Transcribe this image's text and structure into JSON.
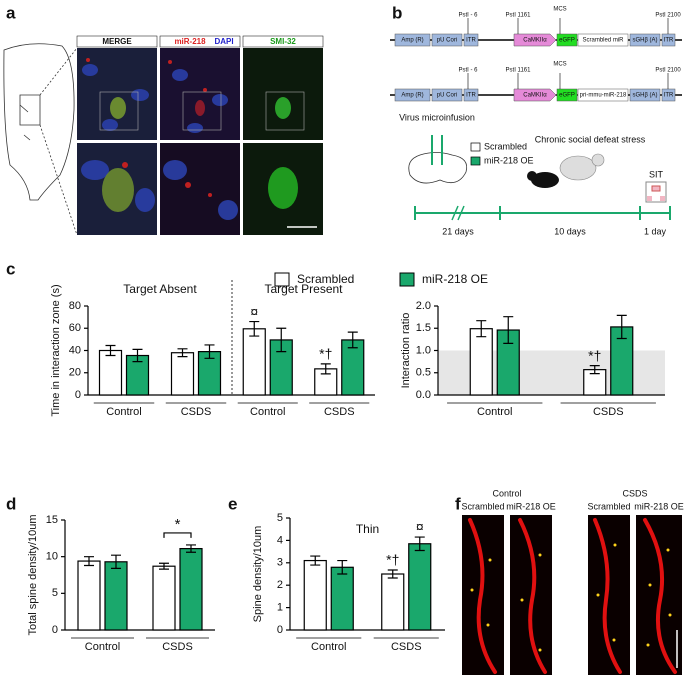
{
  "panel_labels": [
    "a",
    "b",
    "c",
    "d",
    "e",
    "f"
  ],
  "panel_a": {
    "merge": "MERGE",
    "mir": "miR-218",
    "dapi": "DAPI",
    "smi": "SMI-32"
  },
  "panel_b": {
    "constructs": [
      {
        "elements": [
          "Amp (R)",
          "pU Cori",
          "ITR",
          "CaMKIIα",
          "eGFP",
          "Scrambled miR",
          "sGHβ (A)",
          "ITR"
        ]
      },
      {
        "elements": [
          "Amp (R)",
          "pU Cori",
          "ITR",
          "CaMKIIα",
          "eGFP",
          "pri-mmu-miR-218",
          "sGHβ (A)",
          "ITR"
        ]
      }
    ],
    "sites": [
      "PstI - 6",
      "PstI 1161",
      "MCS",
      "PstI 2100"
    ],
    "timeline": {
      "steps": [
        "Virus microinfusion",
        "Chronic social defeat stress",
        "SIT"
      ],
      "legend": [
        "Scrambled",
        "miR-218 OE"
      ],
      "durations": [
        "21 days",
        "10 days",
        "1 day"
      ]
    }
  },
  "panel_f": {
    "groups": [
      "Control",
      "CSDS"
    ],
    "conditions": [
      "Scrambled",
      "miR-218 OE"
    ]
  },
  "chart_data": [
    {
      "type": "bar",
      "title": "Target Absent",
      "ylabel": "Time in interaction zone (s)",
      "categories": [
        "Control",
        "CSDS"
      ],
      "ylim": [
        0,
        80
      ],
      "yticks": [
        0,
        20,
        40,
        60,
        80
      ],
      "series": [
        {
          "name": "Scrambled",
          "color": "#ffffff",
          "values": [
            40,
            38
          ],
          "errors": [
            4.5,
            3.5
          ]
        },
        {
          "name": "miR-218 OE",
          "color": "#1aa86c",
          "values": [
            35.5,
            39
          ],
          "errors": [
            5.5,
            6
          ]
        }
      ]
    },
    {
      "type": "bar",
      "title": "Target Present",
      "categories": [
        "Control",
        "CSDS"
      ],
      "ylim": [
        0,
        80
      ],
      "series": [
        {
          "name": "Scrambled",
          "color": "#ffffff",
          "values": [
            59.5,
            23.5
          ],
          "errors": [
            6.5,
            4.5
          ],
          "markers": [
            "¤",
            "*†"
          ]
        },
        {
          "name": "miR-218 OE",
          "color": "#1aa86c",
          "values": [
            49.5,
            49.5
          ],
          "errors": [
            10.5,
            7
          ]
        }
      ]
    },
    {
      "type": "bar",
      "ylabel": "Interaction ratio",
      "categories": [
        "Control",
        "CSDS"
      ],
      "ylim": [
        0,
        2
      ],
      "yticks": [
        {
          "value": 0,
          "label": "0.0"
        },
        {
          "value": 0.5,
          "label": "0.5"
        },
        {
          "value": 1,
          "label": "1.0"
        },
        {
          "value": 1.5,
          "label": "1.5"
        },
        {
          "value": 2,
          "label": "2.0"
        }
      ],
      "reference_band": 1,
      "series": [
        {
          "name": "Scrambled",
          "color": "#ffffff",
          "values": [
            1.49,
            0.57
          ],
          "errors": [
            0.18,
            0.09
          ],
          "markers": [
            null,
            "*†"
          ]
        },
        {
          "name": "miR-218 OE",
          "color": "#1aa86c",
          "values": [
            1.46,
            1.53
          ],
          "errors": [
            0.3,
            0.26
          ]
        }
      ]
    },
    {
      "type": "bar",
      "ylabel": "Total spine density/10um",
      "categories": [
        "Control",
        "CSDS"
      ],
      "ylim": [
        0,
        15
      ],
      "yticks": [
        0,
        5,
        10,
        15
      ],
      "bracket_label": "*",
      "series": [
        {
          "name": "Scrambled",
          "color": "#ffffff",
          "values": [
            9.4,
            8.7
          ],
          "errors": [
            0.6,
            0.4
          ]
        },
        {
          "name": "miR-218 OE",
          "color": "#1aa86c",
          "values": [
            9.3,
            11.1
          ],
          "errors": [
            0.9,
            0.5
          ]
        }
      ]
    },
    {
      "type": "bar",
      "title": "Thin",
      "ylabel": "Spine density/10um",
      "categories": [
        "Control",
        "CSDS"
      ],
      "ylim": [
        0,
        5
      ],
      "yticks": [
        0,
        1,
        2,
        3,
        4,
        5
      ],
      "series": [
        {
          "name": "Scrambled",
          "color": "#ffffff",
          "values": [
            3.1,
            2.5
          ],
          "errors": [
            0.2,
            0.18
          ],
          "markers": [
            null,
            "*†"
          ]
        },
        {
          "name": "miR-218 OE",
          "color": "#1aa86c",
          "values": [
            2.8,
            3.85
          ],
          "errors": [
            0.3,
            0.3
          ],
          "markers": [
            null,
            "¤"
          ]
        }
      ]
    }
  ]
}
